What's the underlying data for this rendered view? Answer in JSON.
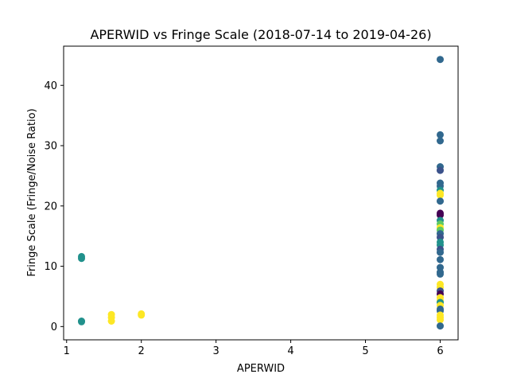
{
  "chart_data": {
    "type": "scatter",
    "title": "APERWID vs Fringe Scale (2018-07-14 to 2019-04-26)",
    "xlabel": "APERWID",
    "ylabel": "Fringe Scale (Fringe/Noise Ratio)",
    "xlim": [
      0.96,
      6.24
    ],
    "ylim": [
      -2.2,
      46.5
    ],
    "xticks": [
      1,
      2,
      3,
      4,
      5,
      6
    ],
    "yticks": [
      0,
      10,
      20,
      30,
      40
    ],
    "grid": false,
    "colors": {
      "purple": "#440154",
      "indigo": "#3b528b",
      "blue": "#31688e",
      "teal": "#21918c",
      "green": "#5ec962",
      "yellow": "#fde725"
    },
    "points": [
      {
        "x": 1.2,
        "y": 11.6,
        "c": "teal"
      },
      {
        "x": 1.2,
        "y": 11.3,
        "c": "teal"
      },
      {
        "x": 1.2,
        "y": 0.9,
        "c": "teal"
      },
      {
        "x": 1.2,
        "y": 0.8,
        "c": "teal"
      },
      {
        "x": 1.6,
        "y": 2.0,
        "c": "yellow"
      },
      {
        "x": 1.6,
        "y": 1.5,
        "c": "yellow"
      },
      {
        "x": 1.6,
        "y": 0.9,
        "c": "yellow"
      },
      {
        "x": 2.0,
        "y": 2.1,
        "c": "yellow"
      },
      {
        "x": 2.0,
        "y": 1.9,
        "c": "yellow"
      },
      {
        "x": 6.0,
        "y": 44.3,
        "c": "blue"
      },
      {
        "x": 6.0,
        "y": 31.8,
        "c": "blue"
      },
      {
        "x": 6.0,
        "y": 30.8,
        "c": "blue"
      },
      {
        "x": 6.0,
        "y": 26.5,
        "c": "blue"
      },
      {
        "x": 6.0,
        "y": 25.9,
        "c": "indigo"
      },
      {
        "x": 6.0,
        "y": 23.8,
        "c": "blue"
      },
      {
        "x": 6.0,
        "y": 23.3,
        "c": "blue"
      },
      {
        "x": 6.0,
        "y": 22.6,
        "c": "teal"
      },
      {
        "x": 6.0,
        "y": 22.1,
        "c": "yellow"
      },
      {
        "x": 6.0,
        "y": 21.8,
        "c": "yellow"
      },
      {
        "x": 6.0,
        "y": 20.8,
        "c": "blue"
      },
      {
        "x": 6.0,
        "y": 18.8,
        "c": "purple"
      },
      {
        "x": 6.0,
        "y": 18.5,
        "c": "purple"
      },
      {
        "x": 6.0,
        "y": 17.6,
        "c": "teal"
      },
      {
        "x": 6.0,
        "y": 17.0,
        "c": "green"
      },
      {
        "x": 6.0,
        "y": 16.4,
        "c": "yellow"
      },
      {
        "x": 6.0,
        "y": 16.0,
        "c": "green"
      },
      {
        "x": 6.0,
        "y": 15.4,
        "c": "blue"
      },
      {
        "x": 6.0,
        "y": 14.8,
        "c": "indigo"
      },
      {
        "x": 6.0,
        "y": 14.0,
        "c": "teal"
      },
      {
        "x": 6.0,
        "y": 13.5,
        "c": "teal"
      },
      {
        "x": 6.0,
        "y": 12.8,
        "c": "indigo"
      },
      {
        "x": 6.0,
        "y": 12.3,
        "c": "blue"
      },
      {
        "x": 6.0,
        "y": 11.1,
        "c": "blue"
      },
      {
        "x": 6.0,
        "y": 9.8,
        "c": "blue"
      },
      {
        "x": 6.0,
        "y": 9.0,
        "c": "blue"
      },
      {
        "x": 6.0,
        "y": 8.7,
        "c": "blue"
      },
      {
        "x": 6.0,
        "y": 7.0,
        "c": "yellow"
      },
      {
        "x": 6.0,
        "y": 6.5,
        "c": "yellow"
      },
      {
        "x": 6.0,
        "y": 5.9,
        "c": "indigo"
      },
      {
        "x": 6.0,
        "y": 5.4,
        "c": "purple"
      },
      {
        "x": 6.0,
        "y": 4.8,
        "c": "yellow"
      },
      {
        "x": 6.0,
        "y": 4.3,
        "c": "yellow"
      },
      {
        "x": 6.0,
        "y": 4.0,
        "c": "teal"
      },
      {
        "x": 6.0,
        "y": 3.5,
        "c": "yellow"
      },
      {
        "x": 6.0,
        "y": 2.9,
        "c": "blue"
      },
      {
        "x": 6.0,
        "y": 2.6,
        "c": "blue"
      },
      {
        "x": 6.0,
        "y": 1.9,
        "c": "yellow"
      },
      {
        "x": 6.0,
        "y": 1.5,
        "c": "yellow"
      },
      {
        "x": 6.0,
        "y": 1.1,
        "c": "yellow"
      },
      {
        "x": 6.0,
        "y": 0.1,
        "c": "blue"
      }
    ]
  }
}
